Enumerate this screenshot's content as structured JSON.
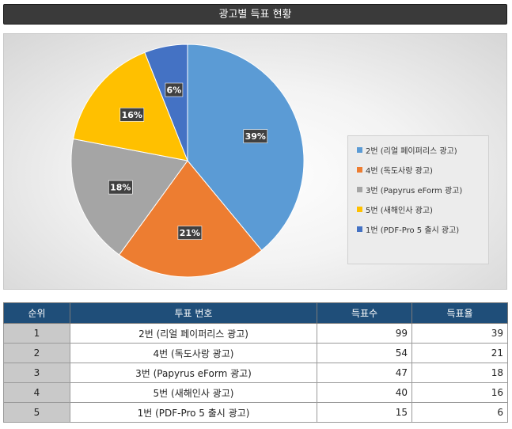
{
  "header": {
    "title": "광고별 득표 현황"
  },
  "chart_data": {
    "type": "pie",
    "start_angle_deg": 0,
    "direction": "clockwise",
    "slices": [
      {
        "label": "2번 (리얼 페이퍼리스 광고)",
        "value": 39,
        "display": "39%",
        "color": "#5b9bd5"
      },
      {
        "label": "4번 (독도사랑 광고)",
        "value": 21,
        "display": "21%",
        "color": "#ed7d31"
      },
      {
        "label": "3번 (Papyrus eForm 광고)",
        "value": 18,
        "display": "18%",
        "color": "#a5a5a5"
      },
      {
        "label": "5번 (새해인사 광고)",
        "value": 16,
        "display": "16%",
        "color": "#ffc000"
      },
      {
        "label": "1번 (PDF-Pro 5 출시 광고)",
        "value": 6,
        "display": "6%",
        "color": "#4472c4"
      }
    ],
    "legend_position": "right"
  },
  "table": {
    "columns": [
      "순위",
      "투표 번호",
      "득표수",
      "득표율"
    ],
    "rows": [
      {
        "rank": "1",
        "name": "2번 (리얼 페이퍼리스 광고)",
        "votes": "99",
        "rate": "39"
      },
      {
        "rank": "2",
        "name": "4번 (독도사랑 광고)",
        "votes": "54",
        "rate": "21"
      },
      {
        "rank": "3",
        "name": "3번 (Papyrus eForm 광고)",
        "votes": "47",
        "rate": "18"
      },
      {
        "rank": "4",
        "name": "5번 (새해인사 광고)",
        "votes": "40",
        "rate": "16"
      },
      {
        "rank": "5",
        "name": "1번 (PDF-Pro 5 출시 광고)",
        "votes": "15",
        "rate": "6"
      }
    ]
  }
}
